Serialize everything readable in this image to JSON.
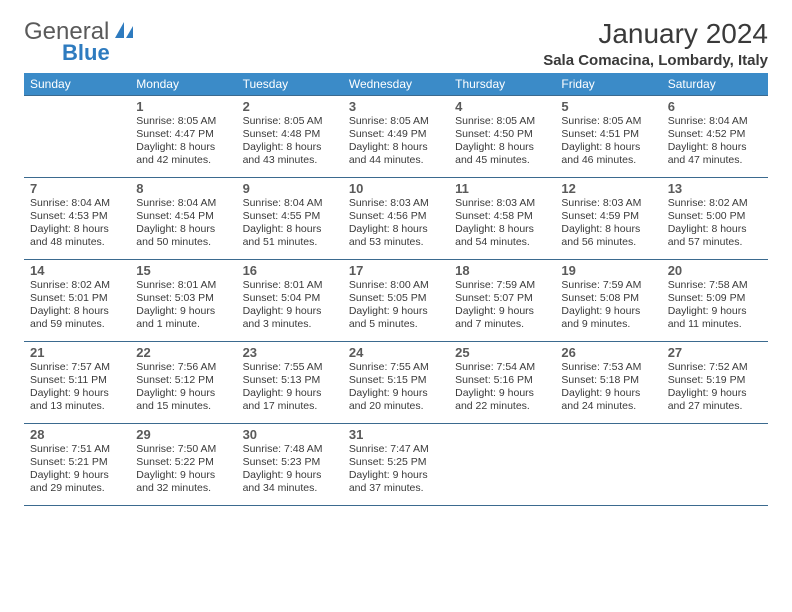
{
  "logo": {
    "text1": "General",
    "text2": "Blue"
  },
  "title": "January 2024",
  "location": "Sala Comacina, Lombardy, Italy",
  "colors": {
    "header_bg": "#3b8bc8",
    "header_text": "#ffffff",
    "border": "#3b6a8f",
    "logo_gray": "#5a5a5a",
    "logo_blue": "#2e7bbf",
    "text": "#3a3a3a"
  },
  "weekdays": [
    "Sunday",
    "Monday",
    "Tuesday",
    "Wednesday",
    "Thursday",
    "Friday",
    "Saturday"
  ],
  "weeks": [
    [
      null,
      {
        "n": "1",
        "sr": "8:05 AM",
        "ss": "4:47 PM",
        "dl": "8 hours and 42 minutes."
      },
      {
        "n": "2",
        "sr": "8:05 AM",
        "ss": "4:48 PM",
        "dl": "8 hours and 43 minutes."
      },
      {
        "n": "3",
        "sr": "8:05 AM",
        "ss": "4:49 PM",
        "dl": "8 hours and 44 minutes."
      },
      {
        "n": "4",
        "sr": "8:05 AM",
        "ss": "4:50 PM",
        "dl": "8 hours and 45 minutes."
      },
      {
        "n": "5",
        "sr": "8:05 AM",
        "ss": "4:51 PM",
        "dl": "8 hours and 46 minutes."
      },
      {
        "n": "6",
        "sr": "8:04 AM",
        "ss": "4:52 PM",
        "dl": "8 hours and 47 minutes."
      }
    ],
    [
      {
        "n": "7",
        "sr": "8:04 AM",
        "ss": "4:53 PM",
        "dl": "8 hours and 48 minutes."
      },
      {
        "n": "8",
        "sr": "8:04 AM",
        "ss": "4:54 PM",
        "dl": "8 hours and 50 minutes."
      },
      {
        "n": "9",
        "sr": "8:04 AM",
        "ss": "4:55 PM",
        "dl": "8 hours and 51 minutes."
      },
      {
        "n": "10",
        "sr": "8:03 AM",
        "ss": "4:56 PM",
        "dl": "8 hours and 53 minutes."
      },
      {
        "n": "11",
        "sr": "8:03 AM",
        "ss": "4:58 PM",
        "dl": "8 hours and 54 minutes."
      },
      {
        "n": "12",
        "sr": "8:03 AM",
        "ss": "4:59 PM",
        "dl": "8 hours and 56 minutes."
      },
      {
        "n": "13",
        "sr": "8:02 AM",
        "ss": "5:00 PM",
        "dl": "8 hours and 57 minutes."
      }
    ],
    [
      {
        "n": "14",
        "sr": "8:02 AM",
        "ss": "5:01 PM",
        "dl": "8 hours and 59 minutes."
      },
      {
        "n": "15",
        "sr": "8:01 AM",
        "ss": "5:03 PM",
        "dl": "9 hours and 1 minute."
      },
      {
        "n": "16",
        "sr": "8:01 AM",
        "ss": "5:04 PM",
        "dl": "9 hours and 3 minutes."
      },
      {
        "n": "17",
        "sr": "8:00 AM",
        "ss": "5:05 PM",
        "dl": "9 hours and 5 minutes."
      },
      {
        "n": "18",
        "sr": "7:59 AM",
        "ss": "5:07 PM",
        "dl": "9 hours and 7 minutes."
      },
      {
        "n": "19",
        "sr": "7:59 AM",
        "ss": "5:08 PM",
        "dl": "9 hours and 9 minutes."
      },
      {
        "n": "20",
        "sr": "7:58 AM",
        "ss": "5:09 PM",
        "dl": "9 hours and 11 minutes."
      }
    ],
    [
      {
        "n": "21",
        "sr": "7:57 AM",
        "ss": "5:11 PM",
        "dl": "9 hours and 13 minutes."
      },
      {
        "n": "22",
        "sr": "7:56 AM",
        "ss": "5:12 PM",
        "dl": "9 hours and 15 minutes."
      },
      {
        "n": "23",
        "sr": "7:55 AM",
        "ss": "5:13 PM",
        "dl": "9 hours and 17 minutes."
      },
      {
        "n": "24",
        "sr": "7:55 AM",
        "ss": "5:15 PM",
        "dl": "9 hours and 20 minutes."
      },
      {
        "n": "25",
        "sr": "7:54 AM",
        "ss": "5:16 PM",
        "dl": "9 hours and 22 minutes."
      },
      {
        "n": "26",
        "sr": "7:53 AM",
        "ss": "5:18 PM",
        "dl": "9 hours and 24 minutes."
      },
      {
        "n": "27",
        "sr": "7:52 AM",
        "ss": "5:19 PM",
        "dl": "9 hours and 27 minutes."
      }
    ],
    [
      {
        "n": "28",
        "sr": "7:51 AM",
        "ss": "5:21 PM",
        "dl": "9 hours and 29 minutes."
      },
      {
        "n": "29",
        "sr": "7:50 AM",
        "ss": "5:22 PM",
        "dl": "9 hours and 32 minutes."
      },
      {
        "n": "30",
        "sr": "7:48 AM",
        "ss": "5:23 PM",
        "dl": "9 hours and 34 minutes."
      },
      {
        "n": "31",
        "sr": "7:47 AM",
        "ss": "5:25 PM",
        "dl": "9 hours and 37 minutes."
      },
      null,
      null,
      null
    ]
  ],
  "labels": {
    "sunrise": "Sunrise:",
    "sunset": "Sunset:",
    "daylight": "Daylight:"
  }
}
